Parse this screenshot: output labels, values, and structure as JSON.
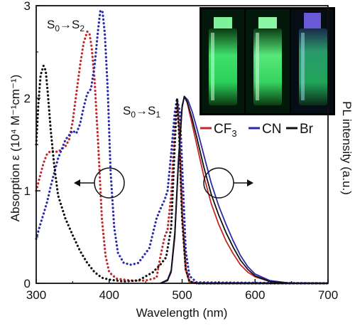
{
  "chart_data": {
    "type": "line",
    "xlabel": "Wavelength (nm)",
    "ylabel_left": "Absorption ε (10⁴ M⁻¹cm⁻¹)",
    "ylabel_right": "PL intensity (a.u.)",
    "xlim": [
      300,
      700
    ],
    "ylim": [
      0,
      3
    ],
    "x_ticks": [
      300,
      400,
      500,
      600,
      700
    ],
    "y_ticks": [
      0,
      1,
      2,
      3
    ],
    "grid": false,
    "annotations": {
      "s0s2": {
        "pre": "S",
        "sub1": "0",
        "arrow": "→",
        "mid": "S",
        "sub2": "2"
      },
      "s0s1": {
        "pre": "S",
        "sub1": "0",
        "arrow": "→",
        "mid": "S",
        "sub2": "1"
      }
    },
    "legend": {
      "placement": "top-right",
      "entries": [
        {
          "label": "CF",
          "sub": "3",
          "color": "#c0282a"
        },
        {
          "label": "CN",
          "sub": "",
          "color": "#2a2aa8"
        },
        {
          "label": "Br",
          "sub": "",
          "color": "#111111"
        }
      ]
    },
    "inset": {
      "description_photos": 3
    },
    "series": [
      {
        "name": "CF3",
        "kind": "absorption",
        "style": "dotted",
        "color": "#c0282a",
        "points": [
          [
            300,
            1.0
          ],
          [
            305,
            1.15
          ],
          [
            310,
            1.3
          ],
          [
            315,
            1.4
          ],
          [
            320,
            1.43
          ],
          [
            330,
            1.42
          ],
          [
            340,
            1.48
          ],
          [
            345,
            1.55
          ],
          [
            350,
            1.75
          ],
          [
            355,
            2.05
          ],
          [
            360,
            2.35
          ],
          [
            365,
            2.6
          ],
          [
            370,
            2.72
          ],
          [
            373,
            2.7
          ],
          [
            376,
            2.55
          ],
          [
            380,
            2.2
          ],
          [
            385,
            1.5
          ],
          [
            390,
            0.7
          ],
          [
            395,
            0.3
          ],
          [
            400,
            0.12
          ],
          [
            410,
            0.05
          ],
          [
            430,
            0.03
          ],
          [
            450,
            0.03
          ],
          [
            465,
            0.06
          ],
          [
            470,
            0.28
          ],
          [
            476,
            0.5
          ],
          [
            480,
            0.58
          ],
          [
            485,
            0.95
          ],
          [
            490,
            1.7
          ],
          [
            493,
            1.99
          ],
          [
            496,
            1.7
          ],
          [
            500,
            0.8
          ],
          [
            505,
            0.15
          ],
          [
            510,
            0.02
          ],
          [
            520,
            0.0
          ],
          [
            700,
            0.0
          ]
        ]
      },
      {
        "name": "CN",
        "kind": "absorption",
        "style": "dotted",
        "color": "#2a2aa8",
        "points": [
          [
            300,
            0.48
          ],
          [
            305,
            0.62
          ],
          [
            310,
            0.75
          ],
          [
            315,
            0.88
          ],
          [
            320,
            1.05
          ],
          [
            330,
            1.35
          ],
          [
            340,
            1.55
          ],
          [
            350,
            1.65
          ],
          [
            355,
            1.62
          ],
          [
            360,
            1.72
          ],
          [
            365,
            1.9
          ],
          [
            370,
            2.05
          ],
          [
            375,
            2.1
          ],
          [
            380,
            2.35
          ],
          [
            385,
            2.75
          ],
          [
            388,
            2.95
          ],
          [
            391,
            2.93
          ],
          [
            394,
            2.7
          ],
          [
            398,
            2.1
          ],
          [
            402,
            1.2
          ],
          [
            407,
            0.6
          ],
          [
            412,
            0.33
          ],
          [
            420,
            0.22
          ],
          [
            430,
            0.2
          ],
          [
            440,
            0.22
          ],
          [
            455,
            0.38
          ],
          [
            465,
            0.7
          ],
          [
            470,
            0.8
          ],
          [
            476,
            0.9
          ],
          [
            480,
            1.0
          ],
          [
            485,
            1.4
          ],
          [
            490,
            1.85
          ],
          [
            493,
            1.99
          ],
          [
            497,
            1.85
          ],
          [
            501,
            1.1
          ],
          [
            505,
            0.35
          ],
          [
            510,
            0.08
          ],
          [
            520,
            0.01
          ],
          [
            700,
            0.0
          ]
        ]
      },
      {
        "name": "Br",
        "kind": "absorption",
        "style": "dotted",
        "color": "#111111",
        "points": [
          [
            300,
            1.5
          ],
          [
            303,
            1.95
          ],
          [
            306,
            2.25
          ],
          [
            310,
            2.35
          ],
          [
            313,
            2.3
          ],
          [
            316,
            2.05
          ],
          [
            320,
            1.65
          ],
          [
            325,
            1.25
          ],
          [
            330,
            0.95
          ],
          [
            340,
            0.7
          ],
          [
            350,
            0.52
          ],
          [
            360,
            0.35
          ],
          [
            370,
            0.22
          ],
          [
            380,
            0.12
          ],
          [
            390,
            0.06
          ],
          [
            400,
            0.04
          ],
          [
            420,
            0.02
          ],
          [
            440,
            0.03
          ],
          [
            460,
            0.12
          ],
          [
            470,
            0.2
          ],
          [
            478,
            0.28
          ],
          [
            485,
            0.6
          ],
          [
            490,
            1.5
          ],
          [
            493,
            2.0
          ],
          [
            496,
            1.6
          ],
          [
            500,
            0.7
          ],
          [
            505,
            0.15
          ],
          [
            510,
            0.02
          ],
          [
            520,
            0.0
          ],
          [
            700,
            0.0
          ]
        ]
      },
      {
        "name": "CF3",
        "kind": "PL",
        "style": "solid",
        "color": "#c0282a",
        "points": [
          [
            470,
            0.0
          ],
          [
            480,
            0.03
          ],
          [
            485,
            0.12
          ],
          [
            490,
            0.5
          ],
          [
            495,
            1.3
          ],
          [
            500,
            1.9
          ],
          [
            503,
            2.02
          ],
          [
            507,
            1.95
          ],
          [
            512,
            1.78
          ],
          [
            520,
            1.5
          ],
          [
            530,
            1.15
          ],
          [
            540,
            0.86
          ],
          [
            550,
            0.64
          ],
          [
            560,
            0.46
          ],
          [
            570,
            0.32
          ],
          [
            580,
            0.2
          ],
          [
            590,
            0.12
          ],
          [
            600,
            0.07
          ],
          [
            620,
            0.02
          ],
          [
            650,
            0.0
          ],
          [
            700,
            0.0
          ]
        ]
      },
      {
        "name": "CN",
        "kind": "PL",
        "style": "solid",
        "color": "#2a2aa8",
        "points": [
          [
            470,
            0.0
          ],
          [
            480,
            0.04
          ],
          [
            485,
            0.14
          ],
          [
            490,
            0.55
          ],
          [
            495,
            1.35
          ],
          [
            500,
            1.92
          ],
          [
            503,
            2.02
          ],
          [
            508,
            1.98
          ],
          [
            514,
            1.85
          ],
          [
            520,
            1.68
          ],
          [
            530,
            1.38
          ],
          [
            540,
            1.08
          ],
          [
            550,
            0.84
          ],
          [
            560,
            0.64
          ],
          [
            570,
            0.46
          ],
          [
            580,
            0.3
          ],
          [
            590,
            0.18
          ],
          [
            600,
            0.1
          ],
          [
            620,
            0.03
          ],
          [
            650,
            0.0
          ],
          [
            700,
            0.0
          ]
        ]
      },
      {
        "name": "Br",
        "kind": "PL",
        "style": "solid",
        "color": "#111111",
        "points": [
          [
            470,
            0.0
          ],
          [
            480,
            0.03
          ],
          [
            485,
            0.13
          ],
          [
            490,
            0.52
          ],
          [
            495,
            1.32
          ],
          [
            500,
            1.9
          ],
          [
            503,
            2.02
          ],
          [
            507,
            1.96
          ],
          [
            513,
            1.8
          ],
          [
            520,
            1.58
          ],
          [
            530,
            1.25
          ],
          [
            540,
            0.96
          ],
          [
            550,
            0.74
          ],
          [
            560,
            0.55
          ],
          [
            570,
            0.39
          ],
          [
            580,
            0.25
          ],
          [
            590,
            0.15
          ],
          [
            600,
            0.08
          ],
          [
            620,
            0.02
          ],
          [
            650,
            0.0
          ],
          [
            700,
            0.0
          ]
        ]
      }
    ]
  }
}
